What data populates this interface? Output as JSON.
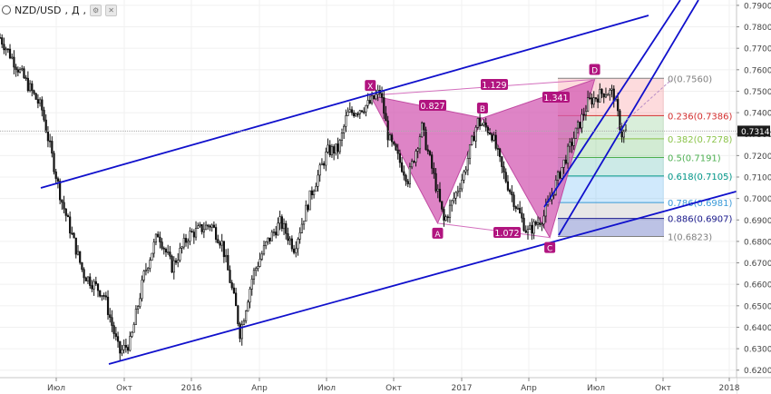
{
  "header": {
    "symbol": "NZD/USD",
    "interval": "Д",
    "settings_icon": "gear-icon",
    "close_icon": "close-icon"
  },
  "last_price": "0.7314",
  "colors": {
    "candle": "#111111",
    "channel": "#1010cc",
    "pattern_fill": "#d35bb3",
    "pattern_label_bg": "#b1147f",
    "price_tag_bg": "#1c1c1c"
  },
  "chart_data": {
    "type": "candlestick",
    "title": "",
    "xlabel": "",
    "ylabel": "",
    "ylim": [
      0.6165,
      0.7925
    ],
    "x_ticks": [
      "Июл",
      "Окт",
      "2016",
      "Апр",
      "Июл",
      "Окт",
      "2017",
      "Апр",
      "Июл",
      "Окт",
      "2018"
    ],
    "y_ticks": [
      "0.7900",
      "0.7800",
      "0.7700",
      "0.7600",
      "0.7500",
      "0.7400",
      "0.7300",
      "0.7200",
      "0.7100",
      "0.7000",
      "0.6900",
      "0.6800",
      "0.6700",
      "0.6600",
      "0.6500",
      "0.6400",
      "0.6300",
      "0.6200"
    ],
    "price_path": [
      [
        0.0,
        0.775
      ],
      [
        3.0,
        0.742
      ],
      [
        4.4,
        0.7
      ],
      [
        6.0,
        0.665
      ],
      [
        7.5,
        0.655
      ],
      [
        8.6,
        0.628
      ],
      [
        9.4,
        0.633
      ],
      [
        10.4,
        0.665
      ],
      [
        11.4,
        0.684
      ],
      [
        12.4,
        0.668
      ],
      [
        13.6,
        0.683
      ],
      [
        15.2,
        0.688
      ],
      [
        16.0,
        0.679
      ],
      [
        17.0,
        0.649
      ],
      [
        17.3,
        0.637
      ],
      [
        18.2,
        0.664
      ],
      [
        19.2,
        0.679
      ],
      [
        20.2,
        0.689
      ],
      [
        21.2,
        0.677
      ],
      [
        22.4,
        0.702
      ],
      [
        23.6,
        0.722
      ],
      [
        24.4,
        0.723
      ],
      [
        25.0,
        0.739
      ],
      [
        26.6,
        0.744
      ],
      [
        27.4,
        0.75
      ],
      [
        28.0,
        0.728
      ],
      [
        29.4,
        0.709
      ],
      [
        30.4,
        0.733
      ],
      [
        31.2,
        0.712
      ],
      [
        32.0,
        0.689
      ],
      [
        33.4,
        0.711
      ],
      [
        34.4,
        0.736
      ],
      [
        35.4,
        0.731
      ],
      [
        36.2,
        0.713
      ],
      [
        37.1,
        0.698
      ],
      [
        38.0,
        0.684
      ],
      [
        39.2,
        0.692
      ],
      [
        40.4,
        0.713
      ],
      [
        41.2,
        0.726
      ],
      [
        42.4,
        0.745
      ],
      [
        43.6,
        0.75
      ],
      [
        44.2,
        0.749
      ],
      [
        44.8,
        0.73
      ],
      [
        45.1,
        0.731
      ]
    ],
    "harmonic_pattern": {
      "points": [
        {
          "label": "X",
          "date": "2016-09",
          "value": 0.748
        },
        {
          "label": "A",
          "date": "2016-12",
          "value": 0.6885
        },
        {
          "label": "B",
          "date": "2017-02",
          "value": 0.7375
        },
        {
          "label": "C",
          "date": "2017-05",
          "value": 0.6818
        },
        {
          "label": "D",
          "date": "2017-07",
          "value": 0.7555
        }
      ],
      "ratios": [
        "0.827",
        "1.129",
        "1.341",
        "1.072"
      ]
    },
    "fibonacci": [
      {
        "level": "0",
        "price": "0.7560",
        "color": "#808080",
        "fill": "rgba(242,54,69,0.18)"
      },
      {
        "level": "0.236",
        "price": "0.7386",
        "color": "#d32f2f",
        "fill": "rgba(129,199,132,0.30)"
      },
      {
        "level": "0.382",
        "price": "0.7278",
        "color": "#8bc34a",
        "fill": "rgba(76,175,80,0.25)"
      },
      {
        "level": "0.5",
        "price": "0.7191",
        "color": "#4caf50",
        "fill": "rgba(0,150,136,0.20)"
      },
      {
        "level": "0.618",
        "price": "0.7105",
        "color": "#009688",
        "fill": "rgba(100,181,246,0.30)"
      },
      {
        "level": "0.786",
        "price": "0.6981",
        "color": "#3a9ad9",
        "fill": "rgba(160,160,160,0.25)"
      },
      {
        "level": "0.886",
        "price": "0.6907",
        "color": "#1a1a8c",
        "fill": "rgba(63,81,181,0.35)"
      },
      {
        "level": "1",
        "price": "0.6823",
        "color": "#808080"
      }
    ]
  }
}
